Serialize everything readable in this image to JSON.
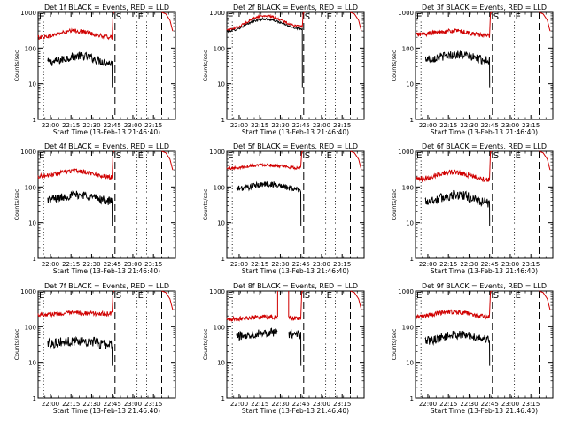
{
  "window": {
    "width": 640,
    "height": 480
  },
  "chart_data": [
    {
      "type": "line",
      "title": "Det 1f BLACK = Events, RED = LLD",
      "xlabel": "Start Time (13-Feb-13 21:46:40)",
      "ylabel": "Counts/sec",
      "y_scale": "log",
      "ylim": [
        1,
        1000
      ],
      "y_tick_labels": [
        "1",
        "10",
        "100",
        "1000"
      ],
      "x_tick_labels": [
        "22:00",
        "22:15",
        "22:30",
        "22:45",
        "23:00",
        "23:15"
      ],
      "x_ticks_min": [
        0,
        15,
        30,
        45,
        60,
        75
      ],
      "xlim": [
        -9,
        91
      ],
      "markers": [
        {
          "label": "E",
          "x_min": -9
        },
        {
          "label": "S",
          "x_min": 47
        },
        {
          "label": "E",
          "x_min": 63
        }
      ],
      "dotted_lines_min": [
        -5,
        63,
        70
      ],
      "dashed_lines_min": [
        47,
        81
      ],
      "series": [
        {
          "name": "Events",
          "color": "#000000",
          "shape": "hump",
          "levels": [
            40,
            60,
            38
          ],
          "x_start_min": -2,
          "x_end_min": 45,
          "noise": 0.12
        },
        {
          "name": "LLD",
          "color": "#d00000",
          "shape": "hump",
          "levels": [
            200,
            300,
            200
          ],
          "x_start_min": -9,
          "x_end_min": 45,
          "noise": 0.06,
          "post_rise": true
        }
      ]
    },
    {
      "type": "line",
      "title": "Det 2f BLACK = Events, RED = LLD",
      "xlabel": "Start Time (13-Feb-13 21:46:40)",
      "ylabel": "Counts/sec",
      "y_scale": "log",
      "ylim": [
        1,
        1000
      ],
      "y_tick_labels": [
        "1",
        "10",
        "100",
        "1000"
      ],
      "x_tick_labels": [
        "22:00",
        "22:15",
        "22:30",
        "22:45",
        "23:00",
        "23:15"
      ],
      "x_ticks_min": [
        0,
        15,
        30,
        45,
        60,
        75
      ],
      "xlim": [
        -9,
        91
      ],
      "markers": [
        {
          "label": "E",
          "x_min": -9
        },
        {
          "label": "S",
          "x_min": 47
        },
        {
          "label": "E",
          "x_min": 63
        }
      ],
      "dotted_lines_min": [
        -5,
        63,
        70
      ],
      "dashed_lines_min": [
        47,
        81
      ],
      "series": [
        {
          "name": "Events",
          "color": "#000000",
          "shape": "hump",
          "levels": [
            300,
            650,
            350
          ],
          "x_start_min": -9,
          "x_end_min": 46,
          "noise": 0.03
        },
        {
          "name": "LLD",
          "color": "#d00000",
          "shape": "hump",
          "levels": [
            330,
            800,
            400
          ],
          "x_start_min": -9,
          "x_end_min": 46,
          "noise": 0.03,
          "post_rise": true
        }
      ]
    },
    {
      "type": "line",
      "title": "Det 3f BLACK = Events, RED = LLD",
      "xlabel": "Start Time (13-Feb-13 21:46:40)",
      "ylabel": "Counts/sec",
      "y_scale": "log",
      "ylim": [
        1,
        1000
      ],
      "y_tick_labels": [
        "1",
        "10",
        "100",
        "1000"
      ],
      "x_tick_labels": [
        "22:00",
        "22:15",
        "22:30",
        "22:45",
        "23:00",
        "23:15"
      ],
      "x_ticks_min": [
        0,
        15,
        30,
        45,
        60,
        75
      ],
      "xlim": [
        -9,
        91
      ],
      "markers": [
        {
          "label": "E",
          "x_min": -9
        },
        {
          "label": "S",
          "x_min": 47
        },
        {
          "label": "E",
          "x_min": 63
        }
      ],
      "dotted_lines_min": [
        -5,
        63,
        70
      ],
      "dashed_lines_min": [
        47,
        81
      ],
      "series": [
        {
          "name": "Events",
          "color": "#000000",
          "shape": "hump",
          "levels": [
            50,
            65,
            45
          ],
          "x_start_min": -2,
          "x_end_min": 45,
          "noise": 0.12
        },
        {
          "name": "LLD",
          "color": "#d00000",
          "shape": "hump",
          "levels": [
            240,
            300,
            220
          ],
          "x_start_min": -9,
          "x_end_min": 45,
          "noise": 0.06,
          "post_rise": true
        }
      ]
    },
    {
      "type": "line",
      "title": "Det 4f BLACK = Events, RED = LLD",
      "xlabel": "Start Time (13-Feb-13 21:46:40)",
      "ylabel": "Counts/sec",
      "y_scale": "log",
      "ylim": [
        1,
        1000
      ],
      "y_tick_labels": [
        "1",
        "10",
        "100",
        "1000"
      ],
      "x_tick_labels": [
        "22:00",
        "22:15",
        "22:30",
        "22:45",
        "23:00",
        "23:15"
      ],
      "x_ticks_min": [
        0,
        15,
        30,
        45,
        60,
        75
      ],
      "xlim": [
        -9,
        91
      ],
      "markers": [
        {
          "label": "E",
          "x_min": -9
        },
        {
          "label": "S",
          "x_min": 47
        },
        {
          "label": "E",
          "x_min": 63
        }
      ],
      "dotted_lines_min": [
        -5,
        63,
        70
      ],
      "dashed_lines_min": [
        47,
        81
      ],
      "series": [
        {
          "name": "Events",
          "color": "#000000",
          "shape": "hump",
          "levels": [
            45,
            60,
            40
          ],
          "x_start_min": -2,
          "x_end_min": 45,
          "noise": 0.12
        },
        {
          "name": "LLD",
          "color": "#d00000",
          "shape": "hump",
          "levels": [
            200,
            280,
            190
          ],
          "x_start_min": -9,
          "x_end_min": 45,
          "noise": 0.06,
          "post_rise": true
        }
      ]
    },
    {
      "type": "line",
      "title": "Det 5f BLACK = Events, RED = LLD",
      "xlabel": "Start Time (13-Feb-13 21:46:40)",
      "ylabel": "Counts/sec",
      "y_scale": "log",
      "ylim": [
        1,
        1000
      ],
      "y_tick_labels": [
        "1",
        "10",
        "100",
        "1000"
      ],
      "x_tick_labels": [
        "22:00",
        "22:15",
        "22:30",
        "22:45",
        "23:00",
        "23:15"
      ],
      "x_ticks_min": [
        0,
        15,
        30,
        45,
        60,
        75
      ],
      "xlim": [
        -9,
        91
      ],
      "markers": [
        {
          "label": "E",
          "x_min": -9
        },
        {
          "label": "S",
          "x_min": 47
        },
        {
          "label": "E",
          "x_min": 63
        }
      ],
      "dotted_lines_min": [
        -5,
        63,
        70
      ],
      "dashed_lines_min": [
        47,
        81
      ],
      "series": [
        {
          "name": "Events",
          "color": "#000000",
          "shape": "hump",
          "levels": [
            90,
            120,
            85
          ],
          "x_start_min": -2,
          "x_end_min": 45,
          "noise": 0.08
        },
        {
          "name": "LLD",
          "color": "#d00000",
          "shape": "hump",
          "levels": [
            330,
            420,
            340
          ],
          "x_start_min": -9,
          "x_end_min": 45,
          "noise": 0.04,
          "post_rise": true
        }
      ]
    },
    {
      "type": "line",
      "title": "Det 6f BLACK = Events, RED = LLD",
      "xlabel": "Start Time (13-Feb-13 21:46:40)",
      "ylabel": "Counts/sec",
      "y_scale": "log",
      "ylim": [
        1,
        1000
      ],
      "y_tick_labels": [
        "1",
        "10",
        "100",
        "1000"
      ],
      "x_tick_labels": [
        "22:00",
        "22:15",
        "22:30",
        "22:45",
        "23:00",
        "23:15"
      ],
      "x_ticks_min": [
        0,
        15,
        30,
        45,
        60,
        75
      ],
      "xlim": [
        -9,
        91
      ],
      "markers": [
        {
          "label": "E",
          "x_min": -9
        },
        {
          "label": "S",
          "x_min": 47
        },
        {
          "label": "E",
          "x_min": 63
        }
      ],
      "dotted_lines_min": [
        -5,
        63,
        70
      ],
      "dashed_lines_min": [
        47,
        81
      ],
      "series": [
        {
          "name": "Events",
          "color": "#000000",
          "shape": "hump",
          "levels": [
            40,
            60,
            35
          ],
          "x_start_min": -2,
          "x_end_min": 45,
          "noise": 0.14
        },
        {
          "name": "LLD",
          "color": "#d00000",
          "shape": "hump",
          "levels": [
            160,
            260,
            160
          ],
          "x_start_min": -9,
          "x_end_min": 45,
          "noise": 0.07,
          "post_rise": true
        }
      ]
    },
    {
      "type": "line",
      "title": "Det 7f BLACK = Events, RED = LLD",
      "xlabel": "Start Time (13-Feb-13 21:46:40)",
      "ylabel": "Counts/sec",
      "y_scale": "log",
      "ylim": [
        1,
        1000
      ],
      "y_tick_labels": [
        "1",
        "10",
        "100",
        "1000"
      ],
      "x_tick_labels": [
        "22:00",
        "22:15",
        "22:30",
        "22:45",
        "23:00",
        "23:15"
      ],
      "x_ticks_min": [
        0,
        15,
        30,
        45,
        60,
        75
      ],
      "xlim": [
        -9,
        91
      ],
      "markers": [
        {
          "label": "E",
          "x_min": -9
        },
        {
          "label": "S",
          "x_min": 47
        },
        {
          "label": "E",
          "x_min": 63
        }
      ],
      "dotted_lines_min": [
        -5,
        63,
        70
      ],
      "dashed_lines_min": [
        47,
        81
      ],
      "series": [
        {
          "name": "Events",
          "color": "#000000",
          "shape": "hump",
          "levels": [
            35,
            40,
            32
          ],
          "x_start_min": -2,
          "x_end_min": 45,
          "noise": 0.14
        },
        {
          "name": "LLD",
          "color": "#d00000",
          "shape": "hump",
          "levels": [
            220,
            240,
            230
          ],
          "x_start_min": -9,
          "x_end_min": 45,
          "noise": 0.06,
          "post_rise": true
        }
      ]
    },
    {
      "type": "line",
      "title": "Det 8f BLACK = Events, RED = LLD",
      "xlabel": "Start Time (13-Feb-13 21:46:40)",
      "ylabel": "Counts/sec",
      "y_scale": "log",
      "ylim": [
        1,
        1000
      ],
      "y_tick_labels": [
        "1",
        "10",
        "100",
        "1000"
      ],
      "x_tick_labels": [
        "22:00",
        "22:15",
        "22:30",
        "22:45",
        "23:00",
        "23:15"
      ],
      "x_ticks_min": [
        0,
        15,
        30,
        45,
        60,
        75
      ],
      "xlim": [
        -9,
        91
      ],
      "markers": [
        {
          "label": "E",
          "x_min": -9
        },
        {
          "label": "S",
          "x_min": 47
        },
        {
          "label": "E",
          "x_min": 63
        }
      ],
      "dotted_lines_min": [
        -5,
        63,
        70
      ],
      "dashed_lines_min": [
        47,
        81
      ],
      "series": [
        {
          "name": "Events",
          "color": "#000000",
          "shape": "hump",
          "levels": [
            55,
            70,
            60
          ],
          "x_start_min": -2,
          "x_end_min": 45,
          "noise": 0.12,
          "gaps": [
            [
              28,
              36
            ]
          ]
        },
        {
          "name": "LLD",
          "color": "#d00000",
          "shape": "hump",
          "levels": [
            160,
            190,
            170
          ],
          "x_start_min": -9,
          "x_end_min": 45,
          "noise": 0.06,
          "gaps": [
            [
              28,
              36
            ]
          ],
          "spikes_min": [
            28,
            36
          ],
          "post_rise": true
        }
      ]
    },
    {
      "type": "line",
      "title": "Det 9f BLACK = Events, RED = LLD",
      "xlabel": "Start Time (13-Feb-13 21:46:40)",
      "ylabel": "Counts/sec",
      "y_scale": "log",
      "ylim": [
        1,
        1000
      ],
      "y_tick_labels": [
        "1",
        "10",
        "100",
        "1000"
      ],
      "x_tick_labels": [
        "22:00",
        "22:15",
        "22:30",
        "22:45",
        "23:00",
        "23:15"
      ],
      "x_ticks_min": [
        0,
        15,
        30,
        45,
        60,
        75
      ],
      "xlim": [
        -9,
        91
      ],
      "markers": [
        {
          "label": "E",
          "x_min": -9
        },
        {
          "label": "S",
          "x_min": 47
        },
        {
          "label": "E",
          "x_min": 63
        }
      ],
      "dotted_lines_min": [
        -5,
        63,
        70
      ],
      "dashed_lines_min": [
        47,
        81
      ],
      "series": [
        {
          "name": "Events",
          "color": "#000000",
          "shape": "hump",
          "levels": [
            40,
            60,
            45
          ],
          "x_start_min": -2,
          "x_end_min": 45,
          "noise": 0.12
        },
        {
          "name": "LLD",
          "color": "#d00000",
          "shape": "hump",
          "levels": [
            190,
            260,
            190
          ],
          "x_start_min": -9,
          "x_end_min": 45,
          "noise": 0.06,
          "post_rise": true
        }
      ]
    }
  ]
}
